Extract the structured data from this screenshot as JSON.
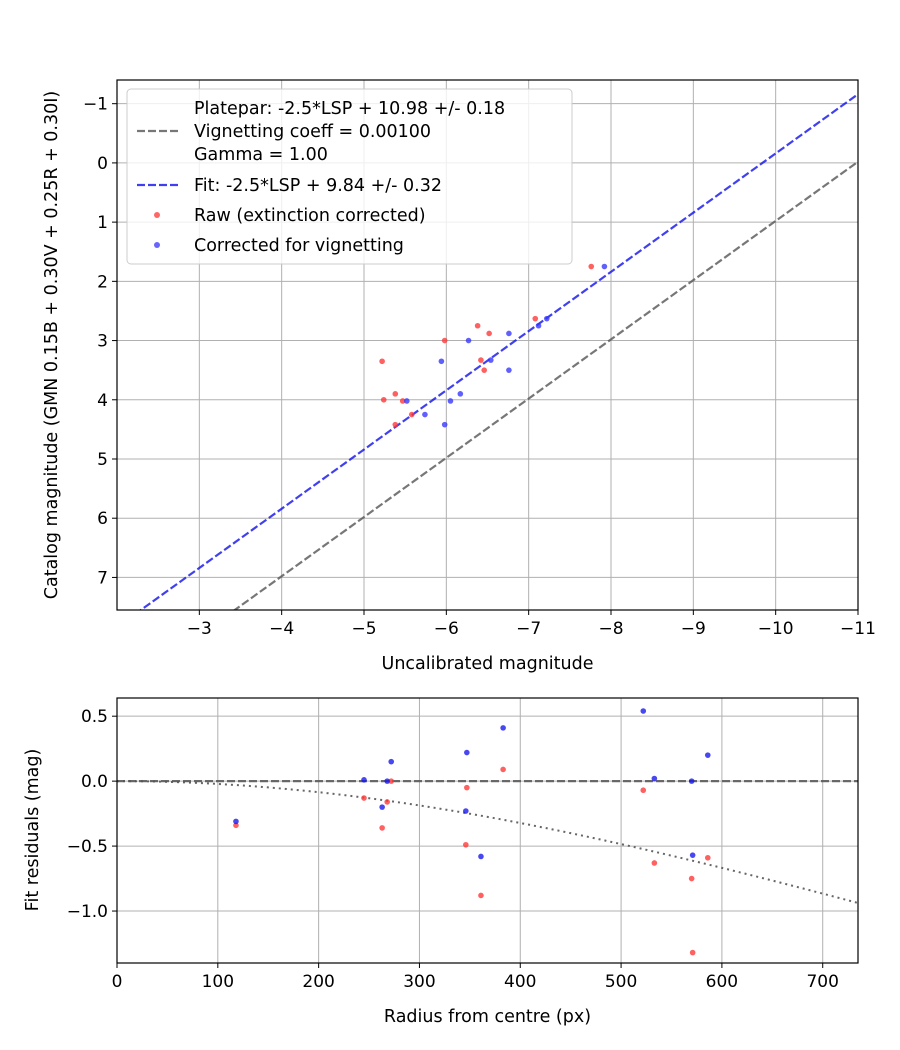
{
  "chart_data": [
    {
      "type": "scatter",
      "panel": "top",
      "xlabel": "Uncalibrated magnitude",
      "ylabel": "Catalog magnitude (GMN 0.15B + 0.30V + 0.25R + 0.30I)",
      "xlim": [
        -2.0,
        -11.0
      ],
      "ylim": [
        7.55,
        -1.4
      ],
      "xticks": [
        -3,
        -4,
        -5,
        -6,
        -7,
        -8,
        -9,
        -10,
        -11
      ],
      "xtick_labels": [
        "−3",
        "−4",
        "−5",
        "−6",
        "−7",
        "−8",
        "−9",
        "−10",
        "−11"
      ],
      "yticks": [
        -1,
        0,
        1,
        2,
        3,
        4,
        5,
        6,
        7
      ],
      "ytick_labels": [
        "−1",
        "0",
        "1",
        "2",
        "3",
        "4",
        "5",
        "6",
        "7"
      ],
      "grid": true,
      "legend_position": "top-left",
      "lines": [
        {
          "name": "Platepar",
          "intercept": 10.98,
          "slope": -2.5,
          "color": "#555555",
          "dash": "dashed",
          "opacity": 0.8,
          "legend": [
            "Platepar: -2.5*LSP + 10.98 +/- 0.18",
            "Vignetting coeff = 0.00100",
            "Gamma = 1.00"
          ]
        },
        {
          "name": "Fit",
          "intercept": 9.84,
          "slope": -2.5,
          "color": "#1010ee",
          "dash": "dashed",
          "opacity": 0.8,
          "legend": [
            "Fit: -2.5*LSP + 9.84 +/- 0.32"
          ]
        }
      ],
      "series": [
        {
          "name": "Raw (extinction corrected)",
          "color": "#ff3333",
          "x": [
            -5.22,
            -5.24,
            -5.38,
            -5.38,
            -5.47,
            -5.58,
            -5.98,
            -6.38,
            -6.42,
            -6.46,
            -6.52,
            -7.08,
            -7.76
          ],
          "y": [
            3.35,
            4.0,
            3.9,
            4.42,
            4.02,
            4.25,
            3.0,
            2.75,
            3.33,
            3.5,
            2.88,
            2.63,
            1.75
          ]
        },
        {
          "name": "Corrected for vignetting",
          "color": "#3333ff",
          "x": [
            -5.52,
            -5.74,
            -5.94,
            -5.98,
            -6.05,
            -6.17,
            -6.27,
            -6.54,
            -6.76,
            -6.76,
            -7.12,
            -7.22,
            -7.92
          ],
          "y": [
            4.02,
            4.25,
            3.35,
            4.42,
            4.02,
            3.9,
            3.0,
            3.33,
            2.88,
            3.5,
            2.75,
            2.63,
            1.75
          ]
        }
      ]
    },
    {
      "type": "scatter",
      "panel": "bottom",
      "xlabel": "Radius from centre (px)",
      "ylabel": "Fit residuals (mag)",
      "xlim": [
        0,
        735
      ],
      "ylim": [
        -1.4,
        0.64
      ],
      "xticks": [
        0,
        100,
        200,
        300,
        400,
        500,
        600,
        700
      ],
      "xtick_labels": [
        "0",
        "100",
        "200",
        "300",
        "400",
        "500",
        "600",
        "700"
      ],
      "yticks": [
        0.5,
        0.0,
        -0.5,
        -1.0
      ],
      "ytick_labels": [
        "0.5",
        "0.0",
        "−0.5",
        "−1.0"
      ],
      "grid": true,
      "reference_line": {
        "y": 0,
        "color": "#555555",
        "dash": "dashed"
      },
      "vignetting_curve": {
        "coeff": 0.001,
        "color": "#555555",
        "dash": "dotted"
      },
      "series": [
        {
          "name": "Raw",
          "color": "#ff3333",
          "x": [
            118,
            245,
            263,
            268,
            272,
            346,
            347,
            361,
            383,
            522,
            533,
            570,
            571,
            586
          ],
          "y": [
            -0.34,
            -0.13,
            -0.36,
            -0.16,
            0.0,
            -0.49,
            -0.05,
            -0.88,
            0.09,
            -0.07,
            -0.63,
            -0.75,
            -1.32,
            -0.59
          ]
        },
        {
          "name": "Corrected",
          "color": "#1515ee",
          "x": [
            118,
            245,
            263,
            268,
            272,
            346,
            347,
            361,
            383,
            522,
            533,
            570,
            571,
            586
          ],
          "y": [
            -0.31,
            0.01,
            -0.2,
            0.0,
            0.15,
            -0.23,
            0.22,
            -0.58,
            0.41,
            0.54,
            0.02,
            0.0,
            -0.57,
            0.2
          ]
        }
      ]
    }
  ]
}
